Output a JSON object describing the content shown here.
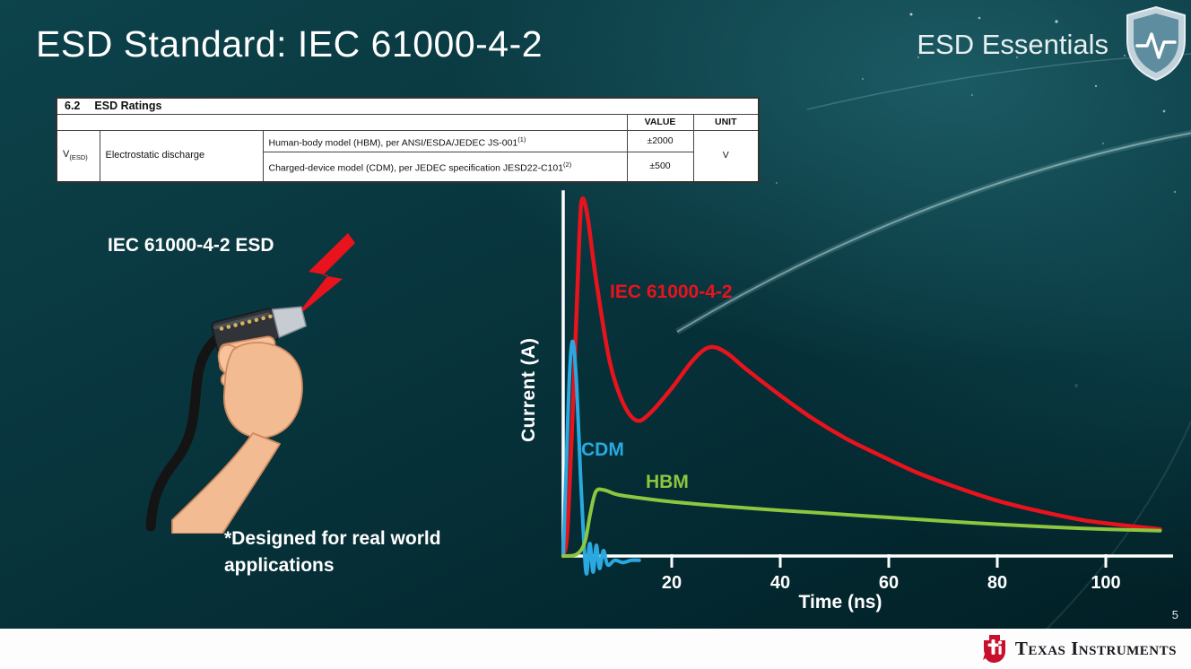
{
  "slide": {
    "title": "ESD Standard: IEC 61000-4-2",
    "series_brand": "ESD Essentials",
    "page_number": "5"
  },
  "ratings_table": {
    "section_number": "6.2",
    "section_title": "ESD Ratings",
    "value_header": "VALUE",
    "unit_header": "UNIT",
    "param_symbol": "V",
    "param_symbol_subscript": "(ESD)",
    "param_name": "Electrostatic discharge",
    "rows": [
      {
        "description": "Human-body model (HBM), per ANSI/ESDA/JEDEC JS-001",
        "superscript": "(1)",
        "value": "±2000"
      },
      {
        "description": "Charged-device model (CDM), per JEDEC specification JESD22-C101",
        "superscript": "(2)",
        "value": "±500"
      }
    ],
    "unit": "V"
  },
  "illustration": {
    "caption": "IEC 61000-4-2 ESD",
    "note_line1": "*Designed for real world",
    "note_line2": "applications"
  },
  "chart_data": {
    "type": "line",
    "title": "",
    "xlabel": "Time (ns)",
    "ylabel": "Current (A)",
    "x_ticks": [
      20,
      40,
      60,
      80,
      100
    ],
    "xlim": [
      0,
      112
    ],
    "ylim": [
      -0.08,
      1.05
    ],
    "y_scale": "relative amplitude (no y-axis tick values shown)",
    "grid": false,
    "legend_position": "inline-labels",
    "series": [
      {
        "name": "IEC 61000-4-2",
        "color": "#e8131d",
        "x": [
          0,
          0.8,
          2,
          3,
          3.5,
          4.5,
          6,
          8.5,
          11,
          13.5,
          16,
          20,
          24,
          27,
          30,
          34,
          40,
          46,
          52,
          58,
          65,
          72,
          80,
          88,
          96,
          104,
          110
        ],
        "y": [
          0,
          0.08,
          0.5,
          0.9,
          1.0,
          0.95,
          0.78,
          0.55,
          0.43,
          0.38,
          0.4,
          0.47,
          0.55,
          0.585,
          0.57,
          0.52,
          0.45,
          0.385,
          0.33,
          0.285,
          0.235,
          0.195,
          0.155,
          0.125,
          0.1,
          0.085,
          0.075
        ]
      },
      {
        "name": "CDM",
        "color": "#2aa9e0",
        "x": [
          0,
          0.5,
          1.2,
          1.8,
          2.5,
          3.2,
          3.8,
          4.3,
          4.9,
          5.5,
          6.1,
          6.7,
          7.4,
          8.2,
          9.5,
          11,
          12.5,
          14
        ],
        "y": [
          0,
          0.22,
          0.52,
          0.6,
          0.47,
          0.22,
          0.04,
          -0.05,
          0.035,
          -0.045,
          0.03,
          -0.035,
          0.015,
          -0.025,
          -0.012,
          -0.018,
          -0.012,
          -0.012
        ]
      },
      {
        "name": "HBM",
        "color": "#8dc63f",
        "x": [
          0,
          2.5,
          4,
          5,
          6,
          7.5,
          10,
          14,
          20,
          30,
          40,
          50,
          60,
          70,
          80,
          90,
          100,
          110
        ],
        "y": [
          0,
          0.005,
          0.04,
          0.12,
          0.18,
          0.185,
          0.172,
          0.163,
          0.152,
          0.139,
          0.128,
          0.118,
          0.108,
          0.098,
          0.089,
          0.081,
          0.075,
          0.071
        ]
      }
    ]
  },
  "footer": {
    "brand": "Texas Instruments"
  }
}
